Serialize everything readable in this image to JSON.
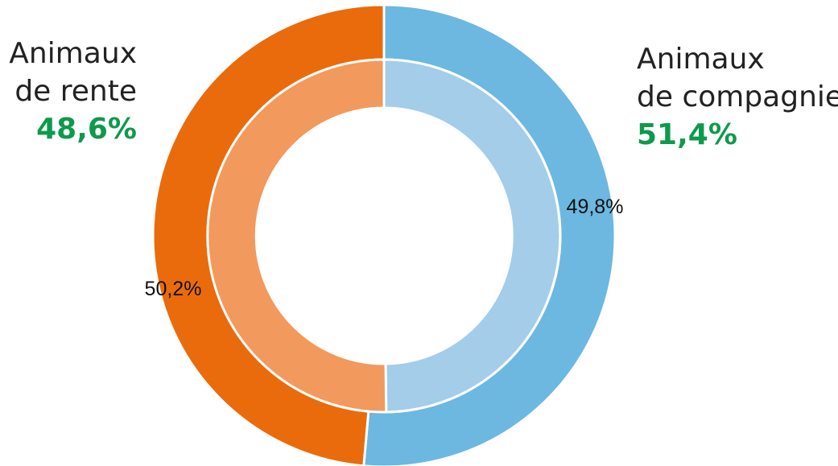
{
  "chart_data": {
    "type": "pie",
    "subtype": "nested-donut",
    "rings": [
      {
        "ring": "outer",
        "slices": [
          {
            "label_lines": [
              "Animaux",
              "de compagnie"
            ],
            "value": 51.4,
            "value_label": "51,4%",
            "color": "#6cb8e0"
          },
          {
            "label_lines": [
              "Animaux",
              "de rente"
            ],
            "value": 48.6,
            "value_label": "48,6%",
            "color": "#ea6b0c"
          }
        ]
      },
      {
        "ring": "inner",
        "slices": [
          {
            "value": 49.8,
            "value_label": "49,8%",
            "color": "#a3cde9"
          },
          {
            "value": 50.2,
            "value_label": "50,2%",
            "color": "#f2995d"
          }
        ]
      }
    ],
    "label_text_color": "#222222",
    "highlight_color": "#0e9a4c"
  }
}
